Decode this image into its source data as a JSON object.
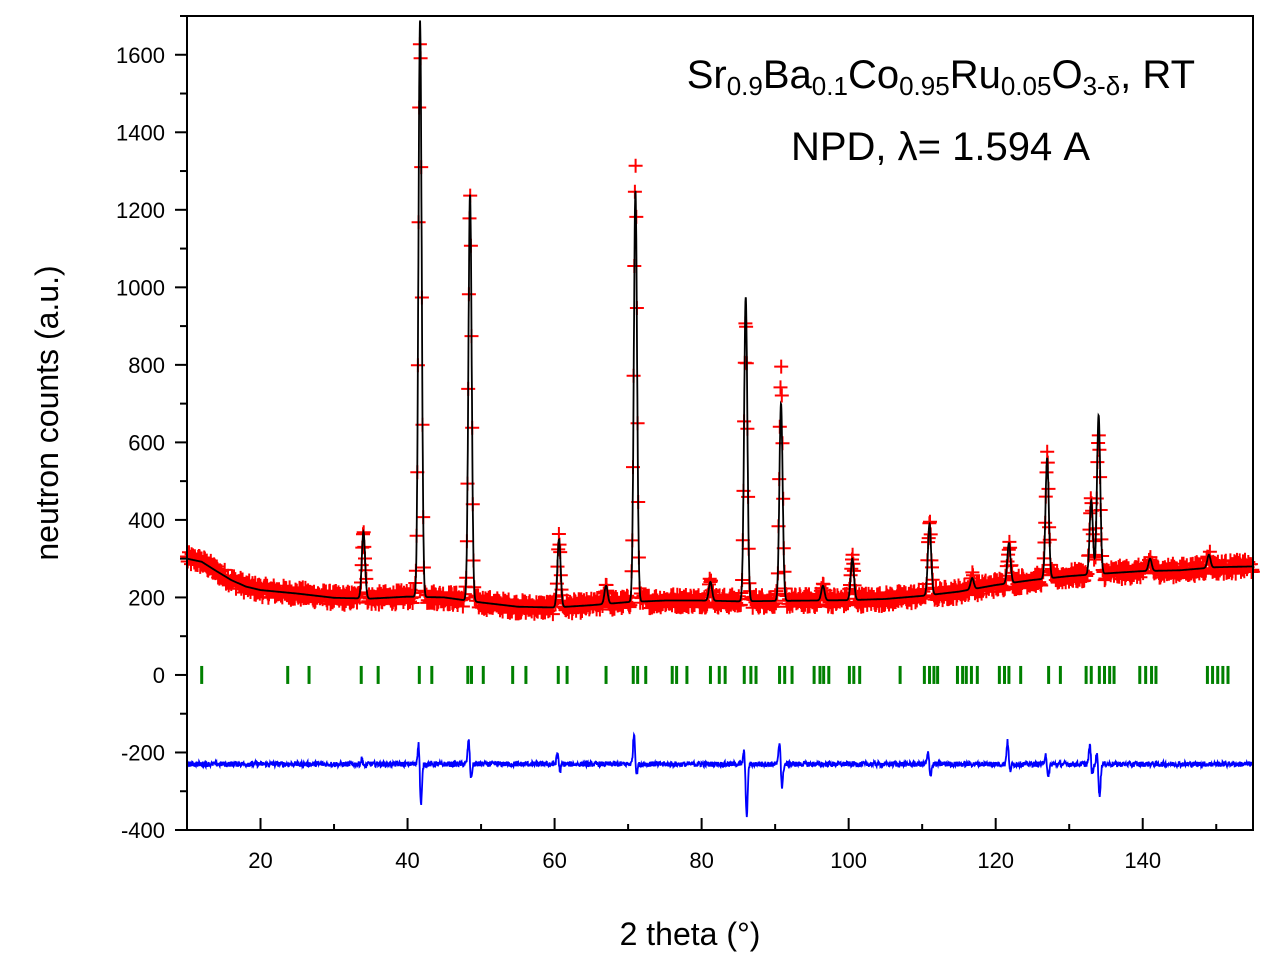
{
  "chart_data": {
    "type": "line",
    "title": "",
    "xlabel": "2 theta (°)",
    "ylabel": "neutron counts (a.u.)",
    "xlim": [
      10,
      155
    ],
    "ylim": [
      -400,
      1700
    ],
    "x_ticks": [
      20,
      40,
      60,
      80,
      100,
      120,
      140
    ],
    "y_ticks": [
      -400,
      -200,
      0,
      200,
      400,
      600,
      800,
      1000,
      1200,
      1400,
      1600
    ],
    "grid": false,
    "legend": "none",
    "annotation": {
      "line1_parts": [
        {
          "text": "Sr",
          "sub": false
        },
        {
          "text": "0.9",
          "sub": true
        },
        {
          "text": "Ba",
          "sub": false
        },
        {
          "text": "0.1",
          "sub": true
        },
        {
          "text": "Co",
          "sub": false
        },
        {
          "text": "0.95",
          "sub": true
        },
        {
          "text": "Ru",
          "sub": false
        },
        {
          "text": "0.05",
          "sub": true
        },
        {
          "text": "O",
          "sub": false
        },
        {
          "text": "3-δ",
          "sub": true
        },
        {
          "text": ", RT",
          "sub": false
        }
      ],
      "line2": "NPD, λ= 1.594 A"
    },
    "series": [
      {
        "kind": "observed",
        "color": "#ff0000",
        "marker": "plus",
        "background_points": [
          [
            10,
            300
          ],
          [
            12,
            292
          ],
          [
            14,
            268
          ],
          [
            16,
            245
          ],
          [
            18,
            228
          ],
          [
            20,
            219
          ],
          [
            25,
            210
          ],
          [
            30,
            199
          ],
          [
            35,
            197
          ],
          [
            40,
            202
          ],
          [
            45,
            200
          ],
          [
            50,
            187
          ],
          [
            55,
            176
          ],
          [
            60,
            174
          ],
          [
            65,
            180
          ],
          [
            70,
            188
          ],
          [
            75,
            192
          ],
          [
            80,
            192
          ],
          [
            85,
            190
          ],
          [
            90,
            191
          ],
          [
            95,
            192
          ],
          [
            100,
            193
          ],
          [
            105,
            196
          ],
          [
            110,
            204
          ],
          [
            115,
            215
          ],
          [
            120,
            232
          ],
          [
            125,
            245
          ],
          [
            130,
            255
          ],
          [
            135,
            262
          ],
          [
            140,
            268
          ],
          [
            145,
            270
          ],
          [
            150,
            278
          ],
          [
            155,
            280
          ]
        ],
        "peaks": [
          {
            "x": 34.0,
            "height": 370
          },
          {
            "x": 41.7,
            "height": 1650
          },
          {
            "x": 48.5,
            "height": 1230
          },
          {
            "x": 60.6,
            "height": 350
          },
          {
            "x": 67.0,
            "height": 230
          },
          {
            "x": 71.0,
            "height": 1310
          },
          {
            "x": 81.2,
            "height": 240
          },
          {
            "x": 86.0,
            "height": 930
          },
          {
            "x": 90.8,
            "height": 780
          },
          {
            "x": 96.5,
            "height": 230
          },
          {
            "x": 100.5,
            "height": 300
          },
          {
            "x": 111.0,
            "height": 390
          },
          {
            "x": 116.8,
            "height": 250
          },
          {
            "x": 121.8,
            "height": 340
          },
          {
            "x": 127.0,
            "height": 560
          },
          {
            "x": 133.0,
            "height": 450
          },
          {
            "x": 134.0,
            "height": 620
          },
          {
            "x": 141.0,
            "height": 300
          },
          {
            "x": 149.0,
            "height": 310
          }
        ]
      },
      {
        "kind": "calculated",
        "color": "#000000",
        "marker": "line",
        "peaks": [
          {
            "x": 41.7,
            "height": 1690
          },
          {
            "x": 48.5,
            "height": 1240
          },
          {
            "x": 71.0,
            "height": 1250
          },
          {
            "x": 86.0,
            "height": 975
          },
          {
            "x": 90.8,
            "height": 700
          },
          {
            "x": 134.0,
            "height": 670
          }
        ]
      },
      {
        "kind": "bragg_positions",
        "color": "#008000",
        "marker": "vertical-tick",
        "y": 0,
        "x": [
          12.0,
          23.7,
          26.6,
          33.7,
          36.0,
          41.6,
          43.3,
          48.2,
          48.7,
          50.3,
          54.3,
          56.1,
          60.5,
          61.7,
          67.0,
          70.7,
          71.3,
          72.4,
          76.0,
          76.6,
          78.0,
          81.2,
          82.4,
          83.2,
          85.8,
          86.7,
          87.4,
          90.6,
          91.3,
          92.3,
          95.3,
          96.1,
          96.6,
          97.3,
          100.1,
          100.7,
          101.5,
          107.0,
          110.3,
          111.0,
          111.6,
          112.1,
          114.8,
          115.5,
          116.0,
          116.7,
          117.5,
          120.5,
          121.2,
          121.8,
          123.4,
          127.2,
          128.8,
          132.3,
          133.0,
          134.1,
          134.8,
          135.5,
          136.1,
          139.6,
          140.4,
          141.2,
          141.8,
          148.8,
          149.5,
          150.2,
          150.9,
          151.6
        ]
      },
      {
        "kind": "difference",
        "color": "#0000ff",
        "marker": "line",
        "baseline": -230,
        "features": [
          {
            "x": 34.0,
            "up": 15,
            "down": 10
          },
          {
            "x": 41.7,
            "up": 60,
            "down": 110
          },
          {
            "x": 48.5,
            "up": 65,
            "down": 40
          },
          {
            "x": 60.6,
            "up": 30,
            "down": 20
          },
          {
            "x": 71.0,
            "up": 80,
            "down": 30
          },
          {
            "x": 86.0,
            "up": 40,
            "down": 140
          },
          {
            "x": 90.8,
            "up": 60,
            "down": 65
          },
          {
            "x": 111.0,
            "up": 30,
            "down": 30
          },
          {
            "x": 121.8,
            "up": 60,
            "down": 20
          },
          {
            "x": 127.0,
            "up": 30,
            "down": 40
          },
          {
            "x": 133.0,
            "up": 50,
            "down": 30
          },
          {
            "x": 134.0,
            "up": 30,
            "down": 85
          }
        ]
      }
    ]
  }
}
